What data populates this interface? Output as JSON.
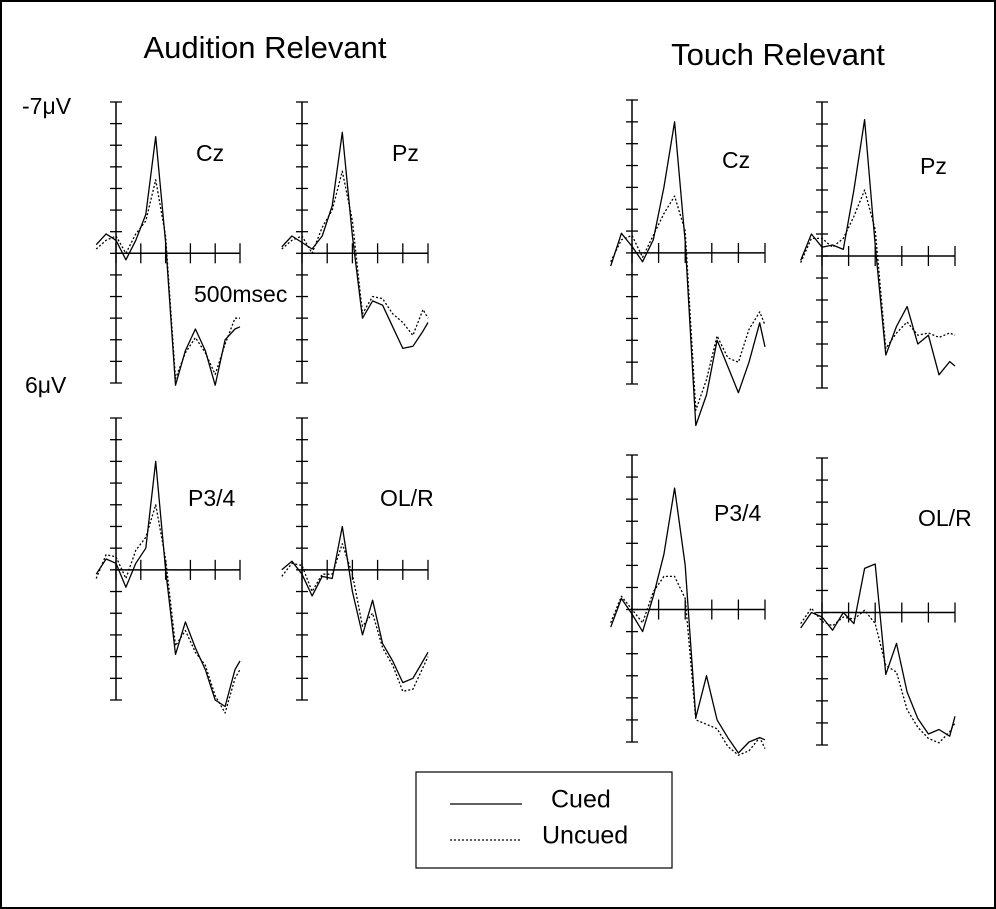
{
  "figure": {
    "titles": [
      "Audition Relevant",
      "Touch Relevant"
    ],
    "y_top_label": "-7μV",
    "y_bottom_label": "6μV",
    "x_label": "500msec"
  },
  "chart_data": [
    {
      "type": "line",
      "title": "Cz",
      "x": [
        -80,
        -40,
        0,
        40,
        80,
        120,
        160,
        200,
        240,
        280,
        320,
        360,
        400,
        440,
        480,
        500
      ],
      "xlim": [
        -90,
        500
      ],
      "xticks": [
        0,
        100,
        200,
        300,
        400,
        500
      ],
      "ylim": [
        -7,
        6
      ],
      "y_inverted": true,
      "yticks": [
        -7,
        -6,
        -5,
        -4,
        -3,
        -2,
        -1,
        0,
        1,
        2,
        3,
        4,
        5,
        6
      ],
      "series": [
        {
          "name": "Cued",
          "color": "#000000",
          "style": "solid",
          "values": [
            -0.4,
            -0.9,
            -0.6,
            0.3,
            -0.6,
            -1.8,
            -5.4,
            -0.5,
            6.1,
            4.5,
            3.5,
            4.5,
            6.1,
            4.0,
            3.5,
            3.4
          ]
        },
        {
          "name": "Uncued",
          "color": "#000000",
          "style": "dotted",
          "values": [
            -0.2,
            -0.6,
            -0.8,
            0,
            -0.9,
            -1.5,
            -3.4,
            -0.8,
            5.8,
            4.6,
            3.9,
            4.6,
            5.6,
            4.2,
            3.0,
            3.0
          ]
        }
      ]
    },
    {
      "type": "line",
      "title": "Pz",
      "x": [
        -80,
        -40,
        0,
        40,
        80,
        120,
        160,
        200,
        240,
        280,
        320,
        360,
        400,
        440,
        480,
        500
      ],
      "xlim": [
        -90,
        500
      ],
      "xticks": [
        0,
        100,
        200,
        300,
        400,
        500
      ],
      "ylim": [
        -7,
        6
      ],
      "y_inverted": true,
      "yticks": [
        -7,
        -6,
        -5,
        -4,
        -3,
        -2,
        -1,
        0,
        1,
        2,
        3,
        4,
        5,
        6
      ],
      "series": [
        {
          "name": "Cued",
          "color": "#000000",
          "style": "solid",
          "values": [
            -0.3,
            -0.8,
            -0.5,
            -0.2,
            -0.8,
            -2.2,
            -5.6,
            -0.8,
            3.0,
            2.2,
            2.4,
            3.4,
            4.4,
            4.3,
            3.6,
            3.2
          ]
        },
        {
          "name": "Uncued",
          "color": "#000000",
          "style": "dotted",
          "values": [
            -0.2,
            -0.6,
            -0.8,
            0,
            -1.2,
            -2.0,
            -3.8,
            -1.5,
            2.8,
            2.0,
            2.1,
            2.8,
            3.2,
            3.8,
            2.6,
            3.0
          ]
        }
      ]
    },
    {
      "type": "line",
      "title": "P3/4",
      "x": [
        -80,
        -40,
        0,
        40,
        80,
        120,
        160,
        200,
        240,
        280,
        320,
        360,
        400,
        440,
        480,
        500
      ],
      "xlim": [
        -90,
        500
      ],
      "xticks": [
        0,
        100,
        200,
        300,
        400,
        500
      ],
      "ylim": [
        -7,
        6
      ],
      "y_inverted": true,
      "yticks": [
        -7,
        -6,
        -5,
        -4,
        -3,
        -2,
        -1,
        0,
        1,
        2,
        3,
        4,
        5,
        6
      ],
      "series": [
        {
          "name": "Cued",
          "color": "#000000",
          "style": "solid",
          "values": [
            0.2,
            -0.5,
            -0.3,
            0.8,
            -0.3,
            -1.0,
            -5.0,
            0,
            3.9,
            2.4,
            3.6,
            4.6,
            6.0,
            6.3,
            4.6,
            4.2
          ]
        },
        {
          "name": "Uncued",
          "color": "#000000",
          "style": "dotted",
          "values": [
            0.4,
            -0.7,
            -0.6,
            0.4,
            -0.9,
            -1.5,
            -3.0,
            -0.5,
            3.5,
            2.8,
            3.8,
            4.4,
            5.8,
            6.6,
            5.0,
            4.6
          ]
        }
      ]
    },
    {
      "type": "line",
      "title": "OL/R",
      "x": [
        -80,
        -40,
        0,
        40,
        80,
        120,
        160,
        200,
        240,
        280,
        320,
        360,
        400,
        440,
        480,
        500
      ],
      "xlim": [
        -90,
        500
      ],
      "xticks": [
        0,
        100,
        200,
        300,
        400,
        500
      ],
      "ylim": [
        -7,
        6
      ],
      "y_inverted": true,
      "yticks": [
        -7,
        -6,
        -5,
        -4,
        -3,
        -2,
        -1,
        0,
        1,
        2,
        3,
        4,
        5,
        6
      ],
      "series": [
        {
          "name": "Cued",
          "color": "#000000",
          "style": "solid",
          "values": [
            0,
            -0.4,
            0.2,
            1.2,
            0.3,
            0.4,
            -2.0,
            1.0,
            3.0,
            1.4,
            3.4,
            4.2,
            5.2,
            5.0,
            4.2,
            3.8
          ]
        },
        {
          "name": "Uncued",
          "color": "#000000",
          "style": "dotted",
          "values": [
            0.3,
            -0.3,
            -0.2,
            1.0,
            0.2,
            0.2,
            -1.2,
            0.2,
            2.6,
            2.0,
            3.6,
            4.4,
            5.6,
            5.5,
            4.5,
            4.0
          ]
        }
      ]
    },
    {
      "type": "line",
      "title": "Cz",
      "x": [
        -80,
        -40,
        0,
        40,
        80,
        120,
        160,
        200,
        240,
        280,
        320,
        360,
        400,
        440,
        480,
        500
      ],
      "xlim": [
        -90,
        500
      ],
      "xticks": [
        0,
        100,
        200,
        300,
        400,
        500
      ],
      "ylim": [
        -7,
        6
      ],
      "y_inverted": true,
      "yticks": [
        -7,
        -6,
        -5,
        -4,
        -3,
        -2,
        -1,
        0,
        1,
        2,
        3,
        4,
        5,
        6
      ],
      "series": [
        {
          "name": "Cued",
          "color": "#000000",
          "style": "solid",
          "values": [
            0.6,
            -0.9,
            -0.3,
            0.4,
            -0.6,
            -3.0,
            -6.0,
            -0.5,
            7.9,
            6.5,
            4.0,
            5.2,
            6.4,
            5.0,
            3.2,
            4.3
          ]
        },
        {
          "name": "Uncued",
          "color": "#000000",
          "style": "dotted",
          "values": [
            0.4,
            -0.6,
            -0.8,
            0.2,
            -0.8,
            -1.8,
            -2.6,
            -1.0,
            7.2,
            5.8,
            3.8,
            4.8,
            5.0,
            3.5,
            2.7,
            3.3
          ]
        }
      ]
    },
    {
      "type": "line",
      "title": "Pz",
      "x": [
        -80,
        -40,
        0,
        40,
        80,
        120,
        160,
        200,
        240,
        280,
        320,
        360,
        400,
        440,
        480,
        500
      ],
      "xlim": [
        -90,
        500
      ],
      "xticks": [
        0,
        100,
        200,
        300,
        400,
        500
      ],
      "ylim": [
        -7,
        6
      ],
      "y_inverted": true,
      "yticks": [
        -7,
        -6,
        -5,
        -4,
        -3,
        -2,
        -1,
        0,
        1,
        2,
        3,
        4,
        5,
        6
      ],
      "series": [
        {
          "name": "Cued",
          "color": "#000000",
          "style": "solid",
          "values": [
            0.2,
            -1.0,
            -0.4,
            -0.5,
            -0.3,
            -3.0,
            -6.2,
            -0.5,
            4.5,
            3.2,
            2.3,
            4.0,
            3.6,
            5.4,
            4.8,
            5.0
          ]
        },
        {
          "name": "Uncued",
          "color": "#000000",
          "style": "dotted",
          "values": [
            0.3,
            -0.8,
            -0.8,
            -0.4,
            -0.8,
            -1.8,
            -3.0,
            -1.2,
            4.2,
            3.5,
            3.0,
            3.6,
            3.5,
            3.7,
            3.5,
            3.6
          ]
        }
      ]
    },
    {
      "type": "line",
      "title": "P3/4",
      "x": [
        -80,
        -40,
        0,
        40,
        80,
        120,
        160,
        200,
        240,
        280,
        320,
        360,
        400,
        440,
        480,
        500
      ],
      "xlim": [
        -90,
        500
      ],
      "xticks": [
        0,
        100,
        200,
        300,
        400,
        500
      ],
      "ylim": [
        -7,
        6
      ],
      "y_inverted": true,
      "yticks": [
        -7,
        -6,
        -5,
        -4,
        -3,
        -2,
        -1,
        0,
        1,
        2,
        3,
        4,
        5,
        6
      ],
      "series": [
        {
          "name": "Cued",
          "color": "#000000",
          "style": "solid",
          "values": [
            0.8,
            -0.5,
            0.2,
            1.0,
            -0.6,
            -2.5,
            -5.5,
            -2.0,
            4.9,
            3.0,
            5.0,
            5.8,
            6.5,
            6.0,
            5.8,
            5.9
          ]
        },
        {
          "name": "Uncued",
          "color": "#000000",
          "style": "dotted",
          "values": [
            0.6,
            -0.6,
            0,
            0.6,
            -0.8,
            -1.5,
            -1.5,
            -0.5,
            5.0,
            5.2,
            5.4,
            6.2,
            6.6,
            6.4,
            5.8,
            6.3
          ]
        }
      ]
    },
    {
      "type": "line",
      "title": "OL/R",
      "x": [
        -80,
        -40,
        0,
        40,
        80,
        120,
        160,
        200,
        240,
        280,
        320,
        360,
        400,
        440,
        480,
        500
      ],
      "xlim": [
        -90,
        500
      ],
      "xticks": [
        0,
        100,
        200,
        300,
        400,
        500
      ],
      "ylim": [
        -7,
        6
      ],
      "y_inverted": true,
      "yticks": [
        -7,
        -6,
        -5,
        -4,
        -3,
        -2,
        -1,
        0,
        1,
        2,
        3,
        4,
        5,
        6
      ],
      "series": [
        {
          "name": "Cued",
          "color": "#000000",
          "style": "solid",
          "values": [
            0.7,
            0,
            0.2,
            0.8,
            0,
            0.5,
            -2.0,
            -2.2,
            2.8,
            1.4,
            3.6,
            4.8,
            5.5,
            5.3,
            5.6,
            4.7
          ]
        },
        {
          "name": "Uncued",
          "color": "#000000",
          "style": "dotted",
          "values": [
            0.5,
            -0.2,
            0.4,
            0.6,
            0.2,
            0.3,
            -0.1,
            0.5,
            2.4,
            2.7,
            4.4,
            5.2,
            5.7,
            5.9,
            5.4,
            5.0
          ]
        }
      ]
    }
  ]
}
